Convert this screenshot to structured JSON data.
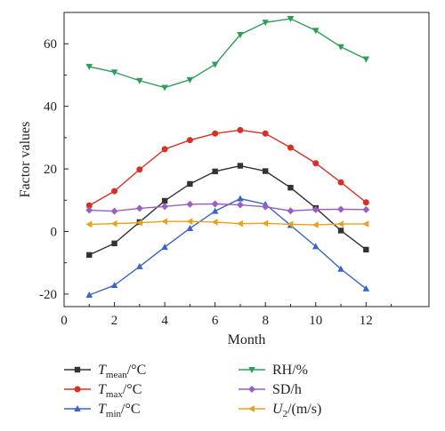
{
  "chart_data": {
    "type": "line",
    "xlabel": "Month",
    "ylabel": "Factor values",
    "xlim": [
      0,
      14.5
    ],
    "ylim": [
      -24,
      70
    ],
    "xticks": [
      0,
      2,
      4,
      6,
      8,
      10,
      12
    ],
    "yticks": [
      -20,
      0,
      20,
      40,
      60
    ],
    "x": [
      1,
      2,
      3,
      4,
      5,
      6,
      7,
      8,
      9,
      10,
      11,
      12
    ],
    "grid": false,
    "legend_position": "bottom",
    "series": [
      {
        "name": "Tmean/°C",
        "base": "T",
        "sub": "mean",
        "unit": "/°C",
        "color": "#333333",
        "marker": "square",
        "values": [
          -7.5,
          -3.8,
          3.0,
          9.8,
          15.2,
          19.2,
          21.0,
          19.3,
          14.0,
          7.5,
          0.3,
          -5.8
        ]
      },
      {
        "name": "Tmax/°C",
        "base": "T",
        "sub": "max",
        "unit": "/°C",
        "color": "#d93025",
        "marker": "circle",
        "values": [
          8.3,
          12.9,
          19.8,
          26.3,
          29.2,
          31.3,
          32.4,
          31.3,
          26.8,
          21.8,
          15.7,
          9.3
        ]
      },
      {
        "name": "Tmin/°C",
        "base": "T",
        "sub": "min",
        "unit": "/°C",
        "color": "#3a64c8",
        "marker": "triangle-up",
        "values": [
          -20.3,
          -17.2,
          -11.2,
          -5.0,
          1.0,
          6.5,
          10.5,
          8.7,
          2.0,
          -4.8,
          -12.0,
          -18.3
        ]
      },
      {
        "name": "RH/%",
        "base": "RH/%",
        "sub": "",
        "unit": "",
        "color": "#2e9e56",
        "marker": "triangle-down",
        "values": [
          52.7,
          50.9,
          48.2,
          46.0,
          48.5,
          53.4,
          62.9,
          66.8,
          68.0,
          64.2,
          59.0,
          55.1
        ]
      },
      {
        "name": "SD/h",
        "base": "SD/h",
        "sub": "",
        "unit": "",
        "color": "#9a5fc0",
        "marker": "diamond",
        "values": [
          6.8,
          6.5,
          7.4,
          8.0,
          8.7,
          8.8,
          8.5,
          7.9,
          6.6,
          7.0,
          7.1,
          7.0
        ]
      },
      {
        "name": "U2/(m/s)",
        "base": "U",
        "sub": "2",
        "unit": "/(m/s)",
        "color": "#e8a317",
        "marker": "triangle-left",
        "values": [
          2.3,
          2.5,
          2.8,
          3.2,
          3.2,
          3.0,
          2.5,
          2.6,
          2.3,
          2.1,
          2.4,
          2.4
        ]
      }
    ]
  }
}
